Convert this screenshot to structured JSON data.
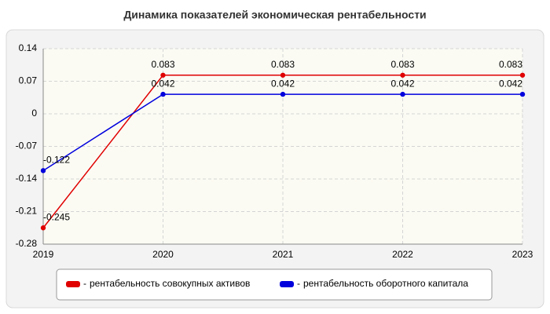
{
  "chart_data": {
    "type": "line",
    "title": "Динамика показателей экономическая рентабельности",
    "categories": [
      "2019",
      "2020",
      "2021",
      "2022",
      "2023"
    ],
    "series": [
      {
        "name": "рентабельность совокупных активов",
        "color": "#e00000",
        "values": [
          -0.245,
          0.083,
          0.083,
          0.083,
          0.083
        ]
      },
      {
        "name": "рентабельность оборотного капитала",
        "color": "#0000dd",
        "values": [
          -0.122,
          0.042,
          0.042,
          0.042,
          0.042
        ]
      }
    ],
    "ylim": [
      -0.28,
      0.14
    ],
    "yticks": [
      0.14,
      0.07,
      0,
      -0.07,
      -0.14,
      -0.21,
      -0.28
    ],
    "grid": true,
    "legend": "bottom"
  }
}
